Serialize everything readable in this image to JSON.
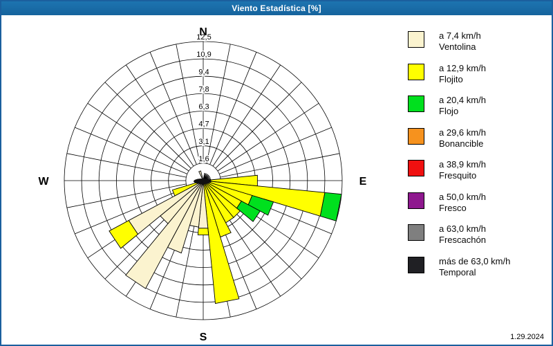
{
  "window": {
    "title": "Viento Estadística [%]",
    "date": "1.29.2024"
  },
  "colors": {
    "ventolina": "#FBF3CF",
    "flojito": "#FFFF00",
    "flojo": "#00E01E",
    "bonancible": "#F6921E",
    "fresquito": "#F01010",
    "fresco": "#8E188E",
    "frescachon": "#7F7F7F",
    "temporal": "#202024"
  },
  "chart_data": {
    "type": "wind-rose",
    "units": "%",
    "ring_max": 12.5,
    "rings": [
      1.6,
      3.1,
      4.7,
      6.3,
      7.8,
      9.4,
      10.9,
      12.5
    ],
    "ring_labels": [
      "1,6",
      "3,1",
      "4,7",
      "6,3",
      "7,8",
      "9,4",
      "10,9",
      "12,5"
    ],
    "sector_count": 32,
    "sector_width_deg": 11.25,
    "compass": {
      "n": "N",
      "e": "E",
      "s": "S",
      "w": "W"
    },
    "bars": [
      {
        "dir": 90.0,
        "segments": [
          {
            "cat": "flojito",
            "from": 0,
            "to": 4.9
          }
        ]
      },
      {
        "dir": 101.25,
        "segments": [
          {
            "cat": "flojito",
            "from": 0,
            "to": 11.0
          },
          {
            "cat": "flojo",
            "from": 11.0,
            "to": 12.5
          }
        ]
      },
      {
        "dir": 112.5,
        "segments": [
          {
            "cat": "flojito",
            "from": 0,
            "to": 4.6
          },
          {
            "cat": "flojo",
            "from": 4.6,
            "to": 6.6
          }
        ]
      },
      {
        "dir": 123.75,
        "segments": [
          {
            "cat": "flojito",
            "from": 0,
            "to": 3.9
          },
          {
            "cat": "flojo",
            "from": 3.9,
            "to": 5.8
          }
        ]
      },
      {
        "dir": 135.0,
        "segments": [
          {
            "cat": "flojito",
            "from": 0,
            "to": 4.3
          }
        ]
      },
      {
        "dir": 146.25,
        "segments": [
          {
            "cat": "flojito",
            "from": 0,
            "to": 4.3
          }
        ]
      },
      {
        "dir": 157.5,
        "segments": [
          {
            "cat": "flojito",
            "from": 0,
            "to": 5.3
          }
        ]
      },
      {
        "dir": 168.75,
        "segments": [
          {
            "cat": "flojito",
            "from": 0,
            "to": 11.1
          }
        ]
      },
      {
        "dir": 180.0,
        "segments": [
          {
            "cat": "ventolina",
            "from": 0,
            "to": 4.3
          },
          {
            "cat": "flojito",
            "from": 4.3,
            "to": 4.9
          }
        ]
      },
      {
        "dir": 191.25,
        "segments": [
          {
            "cat": "ventolina",
            "from": 0,
            "to": 4.2
          }
        ]
      },
      {
        "dir": 202.5,
        "segments": [
          {
            "cat": "ventolina",
            "from": 0,
            "to": 6.8
          }
        ]
      },
      {
        "dir": 213.75,
        "segments": [
          {
            "cat": "ventolina",
            "from": 0,
            "to": 11.0
          }
        ]
      },
      {
        "dir": 225.0,
        "segments": [
          {
            "cat": "ventolina",
            "from": 0,
            "to": 5.0
          }
        ]
      },
      {
        "dir": 236.25,
        "segments": [
          {
            "cat": "ventolina",
            "from": 0,
            "to": 7.6
          },
          {
            "cat": "flojito",
            "from": 7.6,
            "to": 9.6
          }
        ]
      },
      {
        "dir": 247.5,
        "segments": [
          {
            "cat": "flojito",
            "from": 0,
            "to": 2.9
          }
        ]
      },
      {
        "dir": 340.0,
        "segments": [
          {
            "cat": "ventolina",
            "from": 0,
            "to": 0.9
          }
        ]
      }
    ],
    "needles": [
      {
        "dir": 11.25,
        "len": 0.7
      },
      {
        "dir": 22.5,
        "len": 0.7
      },
      {
        "dir": 33.75,
        "len": 0.7
      },
      {
        "dir": 45.0,
        "len": 0.7
      },
      {
        "dir": 56.25,
        "len": 0.7
      },
      {
        "dir": 67.5,
        "len": 0.7
      },
      {
        "dir": 78.75,
        "len": 0.7
      },
      {
        "dir": 258.75,
        "len": 0.55
      },
      {
        "dir": 270.0,
        "len": 0.55
      },
      {
        "dir": 281.25,
        "len": 0.55
      }
    ]
  },
  "legend": {
    "items": [
      {
        "speed": "a 7,4 km/h",
        "name": "Ventolina",
        "cat": "ventolina"
      },
      {
        "speed": "a 12,9 km/h",
        "name": "Flojito",
        "cat": "flojito"
      },
      {
        "speed": "a 20,4 km/h",
        "name": "Flojo",
        "cat": "flojo"
      },
      {
        "speed": "a 29,6 km/h",
        "name": "Bonancible",
        "cat": "bonancible"
      },
      {
        "speed": "a 38,9 km/h",
        "name": "Fresquito",
        "cat": "fresquito"
      },
      {
        "speed": "a 50,0 km/h",
        "name": "Fresco",
        "cat": "fresco"
      },
      {
        "speed": "a 63,0 km/h",
        "name": "Frescachón",
        "cat": "frescachon"
      },
      {
        "speed": "más de 63,0 km/h",
        "name": "Temporal",
        "cat": "temporal"
      }
    ]
  }
}
